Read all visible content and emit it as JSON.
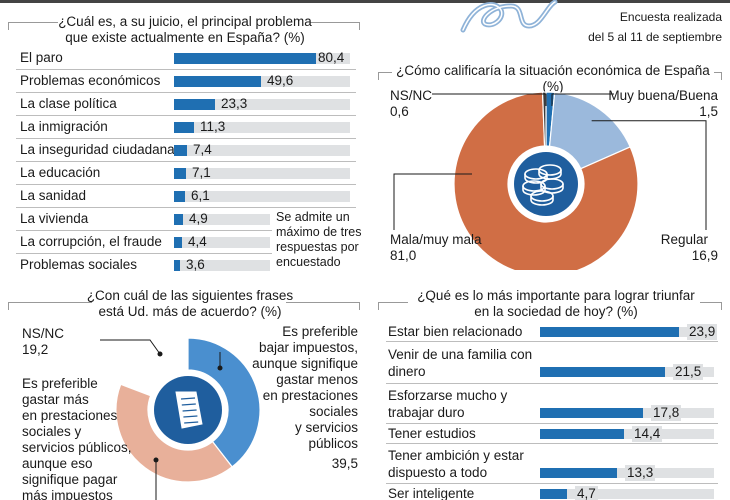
{
  "header": {
    "survey_label": "Encuesta realizada",
    "survey_dates": "del 5 al 11 de septiembre"
  },
  "panels": {
    "problems": {
      "title_line1": "¿Cuál es, a su juicio, el principal problema",
      "title_line2": "que existe actualmente en España? (%)",
      "note_line1": "Se admite un",
      "note_line2": "máximo de tres",
      "note_line3": "respuestas por",
      "note_line4": "encuestado"
    },
    "economy": {
      "title": "¿Cómo calificaría la situación económica de España (%)"
    },
    "phrases": {
      "title_line1": "¿Con cuál de las siguientes frases",
      "title_line2": "está Ud. más de acuerdo? (%)"
    },
    "success": {
      "title_line1": "¿Qué es lo más importante para lograr triunfar",
      "title_line2": "en la sociedad de hoy? (%)"
    }
  },
  "colors": {
    "bar": "#1f6fb2",
    "bar_bg": "#dfe1e3",
    "orange": "#d06e45",
    "light_blue": "#9bb9dc",
    "salmon": "#e8b09a",
    "mid_blue": "#4a8fcf",
    "dark_blue": "#1f5e9e"
  },
  "chart_data": [
    {
      "type": "bar",
      "orientation": "horizontal",
      "title": "¿Cuál es, a su juicio, el principal problema que existe actualmente en España? (%)",
      "categories": [
        "El paro",
        "Problemas económicos",
        "La clase política",
        "La inmigración",
        "La inseguridad ciudadana",
        "La educación",
        "La sanidad",
        "La vivienda",
        "La corrupción, el fraude",
        "Problemas sociales"
      ],
      "values": [
        80.4,
        49.6,
        23.3,
        11.3,
        7.4,
        7.1,
        6.1,
        4.9,
        4.4,
        3.6
      ],
      "value_labels": [
        "80,4",
        "49,6",
        "23,3",
        "11,3",
        "7,4",
        "7,1",
        "6,1",
        "4,9",
        "4,4",
        "3,6"
      ],
      "xlim": [
        0,
        100
      ]
    },
    {
      "type": "pie",
      "donut": true,
      "title": "¿Cómo calificaría la situación económica de España (%)",
      "slices": [
        {
          "label": "Muy buena/Buena",
          "value": 1.5,
          "value_label": "1,5",
          "color": "#1f6fb2"
        },
        {
          "label": "Regular",
          "value": 16.9,
          "value_label": "16,9",
          "color": "#9bb9dc"
        },
        {
          "label": "Mala/muy mala",
          "value": 81.0,
          "value_label": "81,0",
          "color": "#d06e45"
        },
        {
          "label": "NS/NC",
          "value": 0.6,
          "value_label": "0,6",
          "color": "#3b3b3b"
        }
      ]
    },
    {
      "type": "pie",
      "donut": true,
      "title": "¿Con cuál de las siguientes frases está Ud. más de acuerdo? (%)",
      "slices": [
        {
          "label": "Es preferible bajar impuestos, aunque signifique gastar menos en prestaciones sociales y servicios públicos",
          "label_lines": [
            "Es preferible",
            "bajar impuestos,",
            "aunque signifique",
            "gastar menos",
            "en prestaciones",
            "sociales",
            "y servicios",
            "públicos"
          ],
          "value": 39.5,
          "value_label": "39,5",
          "color": "#4a8fcf"
        },
        {
          "label": "Es preferible gastar más en prestaciones sociales y servicios públicos, aunque eso signifique pagar más impuestos",
          "label_lines": [
            "Es preferible",
            "gastar más",
            "en prestaciones",
            "sociales y",
            "servicios públicos,",
            "aunque eso",
            "signifique pagar",
            "más impuestos"
          ],
          "value": 41.3,
          "value_label": "",
          "color": "#e8b09a"
        },
        {
          "label": "NS/NC",
          "value": 19.2,
          "value_label": "19,2",
          "color": "#ffffff"
        }
      ]
    },
    {
      "type": "bar",
      "orientation": "horizontal",
      "title": "¿Qué es lo más importante para lograr triunfar en la sociedad de hoy? (%)",
      "categories": [
        "Estar bien relacionado",
        "Venir de una familia con dinero",
        "Esforzarse mucho y trabajar duro",
        "Tener estudios",
        "Tener ambición y estar dispuesto a todo",
        "Ser inteligente"
      ],
      "category_lines": [
        [
          "Estar bien relacionado"
        ],
        [
          "Venir de una familia con",
          "dinero"
        ],
        [
          "Esforzarse mucho y",
          "trabajar duro"
        ],
        [
          "Tener estudios"
        ],
        [
          "Tener ambición y estar",
          "dispuesto a todo"
        ],
        [
          "Ser inteligente"
        ]
      ],
      "values": [
        23.9,
        21.5,
        17.8,
        14.4,
        13.3,
        4.7
      ],
      "value_labels": [
        "23,9",
        "21,5",
        "17,8",
        "14,4",
        "13,3",
        "4,7"
      ],
      "xlim": [
        0,
        30
      ]
    }
  ]
}
